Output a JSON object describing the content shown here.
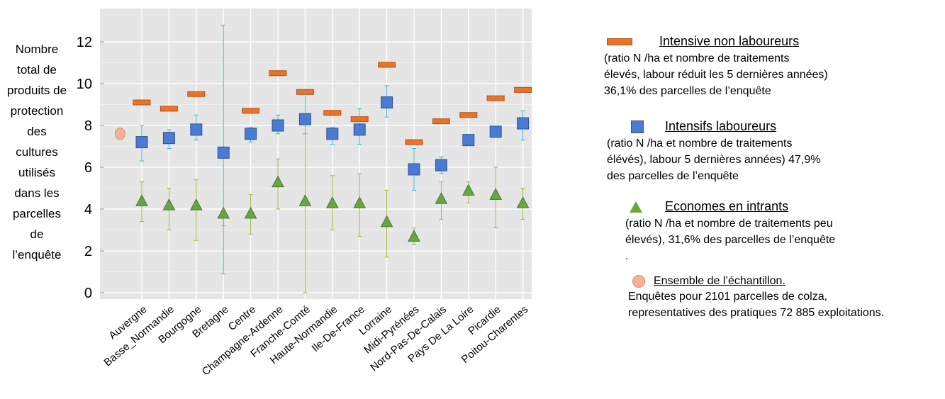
{
  "chart_data": {
    "type": "scatter",
    "ylabel": "Nombre\ntotal de\nproduits de\nprotection\ndes\ncultures\nutilisés\ndans les\nparcelles\nde\nl’enquête",
    "ylim": [
      0,
      13
    ],
    "yticks": [
      "0",
      "2",
      "4",
      "6",
      "8",
      "10",
      "12"
    ],
    "grid": true,
    "legend_position": "right",
    "categories": [
      "Auvergne",
      "Basse_Normandie",
      "Bourgogne",
      "Bretagne",
      "Centre",
      "Champagne-Ardenne",
      "Franche-Comté",
      "Haute-Normandie",
      "Ile-De-France",
      "Lorraine",
      "Midi-Pyrénées",
      "Nord-Pas-De-Calais",
      "Pays De La Loire",
      "Picardie",
      "Poitou-Charentes"
    ],
    "series": [
      {
        "name": "Intensive non laboureurs",
        "marker": "bar",
        "color": "#e8732a",
        "values": [
          9.1,
          8.8,
          9.5,
          null,
          8.7,
          10.5,
          9.6,
          8.6,
          8.3,
          10.9,
          7.2,
          8.2,
          8.5,
          9.3,
          9.7
        ],
        "error": null
      },
      {
        "name": "Intensifs laboureurs",
        "marker": "square",
        "color": "#4a7ad1",
        "values": [
          7.2,
          7.4,
          7.8,
          6.7,
          7.6,
          8.0,
          8.3,
          7.6,
          7.8,
          9.1,
          5.9,
          6.1,
          7.3,
          7.7,
          8.1
        ],
        "error": [
          [
            6.3,
            8.0
          ],
          [
            6.9,
            7.8
          ],
          [
            7.3,
            8.5
          ],
          [
            0.9,
            12.8
          ],
          [
            7.2,
            7.9
          ],
          [
            7.6,
            8.5
          ],
          [
            7.6,
            9.6
          ],
          [
            7.1,
            7.9
          ],
          [
            7.1,
            8.8
          ],
          [
            8.4,
            9.9
          ],
          [
            4.9,
            6.9
          ],
          [
            5.7,
            6.5
          ],
          null,
          null,
          [
            7.3,
            8.7
          ]
        ],
        "error_color": "#35b8c9"
      },
      {
        "name": "Economes en intrants",
        "marker": "triangle",
        "color": "#6aa544",
        "values": [
          4.4,
          4.2,
          4.2,
          3.8,
          3.8,
          5.3,
          4.4,
          4.3,
          4.3,
          3.4,
          2.7,
          4.5,
          4.9,
          4.7,
          4.3
        ],
        "error": [
          [
            3.4,
            5.3
          ],
          [
            3.0,
            5.0
          ],
          [
            2.5,
            5.4
          ],
          [
            3.2,
            3.9
          ],
          [
            2.8,
            4.7
          ],
          [
            4.0,
            6.4
          ],
          [
            0.0,
            7.6
          ],
          [
            3.0,
            5.6
          ],
          [
            2.7,
            5.7
          ],
          [
            1.7,
            4.9
          ],
          [
            2.3,
            3.1
          ],
          [
            3.5,
            5.3
          ],
          [
            4.3,
            5.3
          ],
          [
            3.1,
            6.0
          ],
          [
            3.5,
            5.0
          ]
        ],
        "error_color": "#9ab53a"
      },
      {
        "name": "Ensemble de l’échantillon",
        "marker": "circle",
        "color": "#f7b195",
        "category_position": -0.8,
        "value": 7.6
      }
    ]
  },
  "legend": [
    {
      "title": "Intensive non laboureurs",
      "description": "(ratio N /ha et nombre de traitements\nélevés, labour réduit les 5 dernières années)\n36,1% des parcelles de l’enquête",
      "symbol": "bar"
    },
    {
      "title": "Intensifs laboureurs",
      "description": "(ratio N /ha et nombre de traitements\nélévés), labour 5 dernières années) 47,9%\ndes parcelles de l’enquête",
      "symbol": "square"
    },
    {
      "title": "Economes en intrants",
      "description": "(ratio N /ha et nombre de traitements peu\nélevés), 31,6% des parcelles de l’enquête\n.",
      "symbol": "triangle"
    },
    {
      "title": "Ensemble de l’échantillon.",
      "description": "Enquêtes pour 2101 parcelles de colza,\n representatives des pratiques  72 885 exploitations.",
      "symbol": "circle"
    }
  ]
}
